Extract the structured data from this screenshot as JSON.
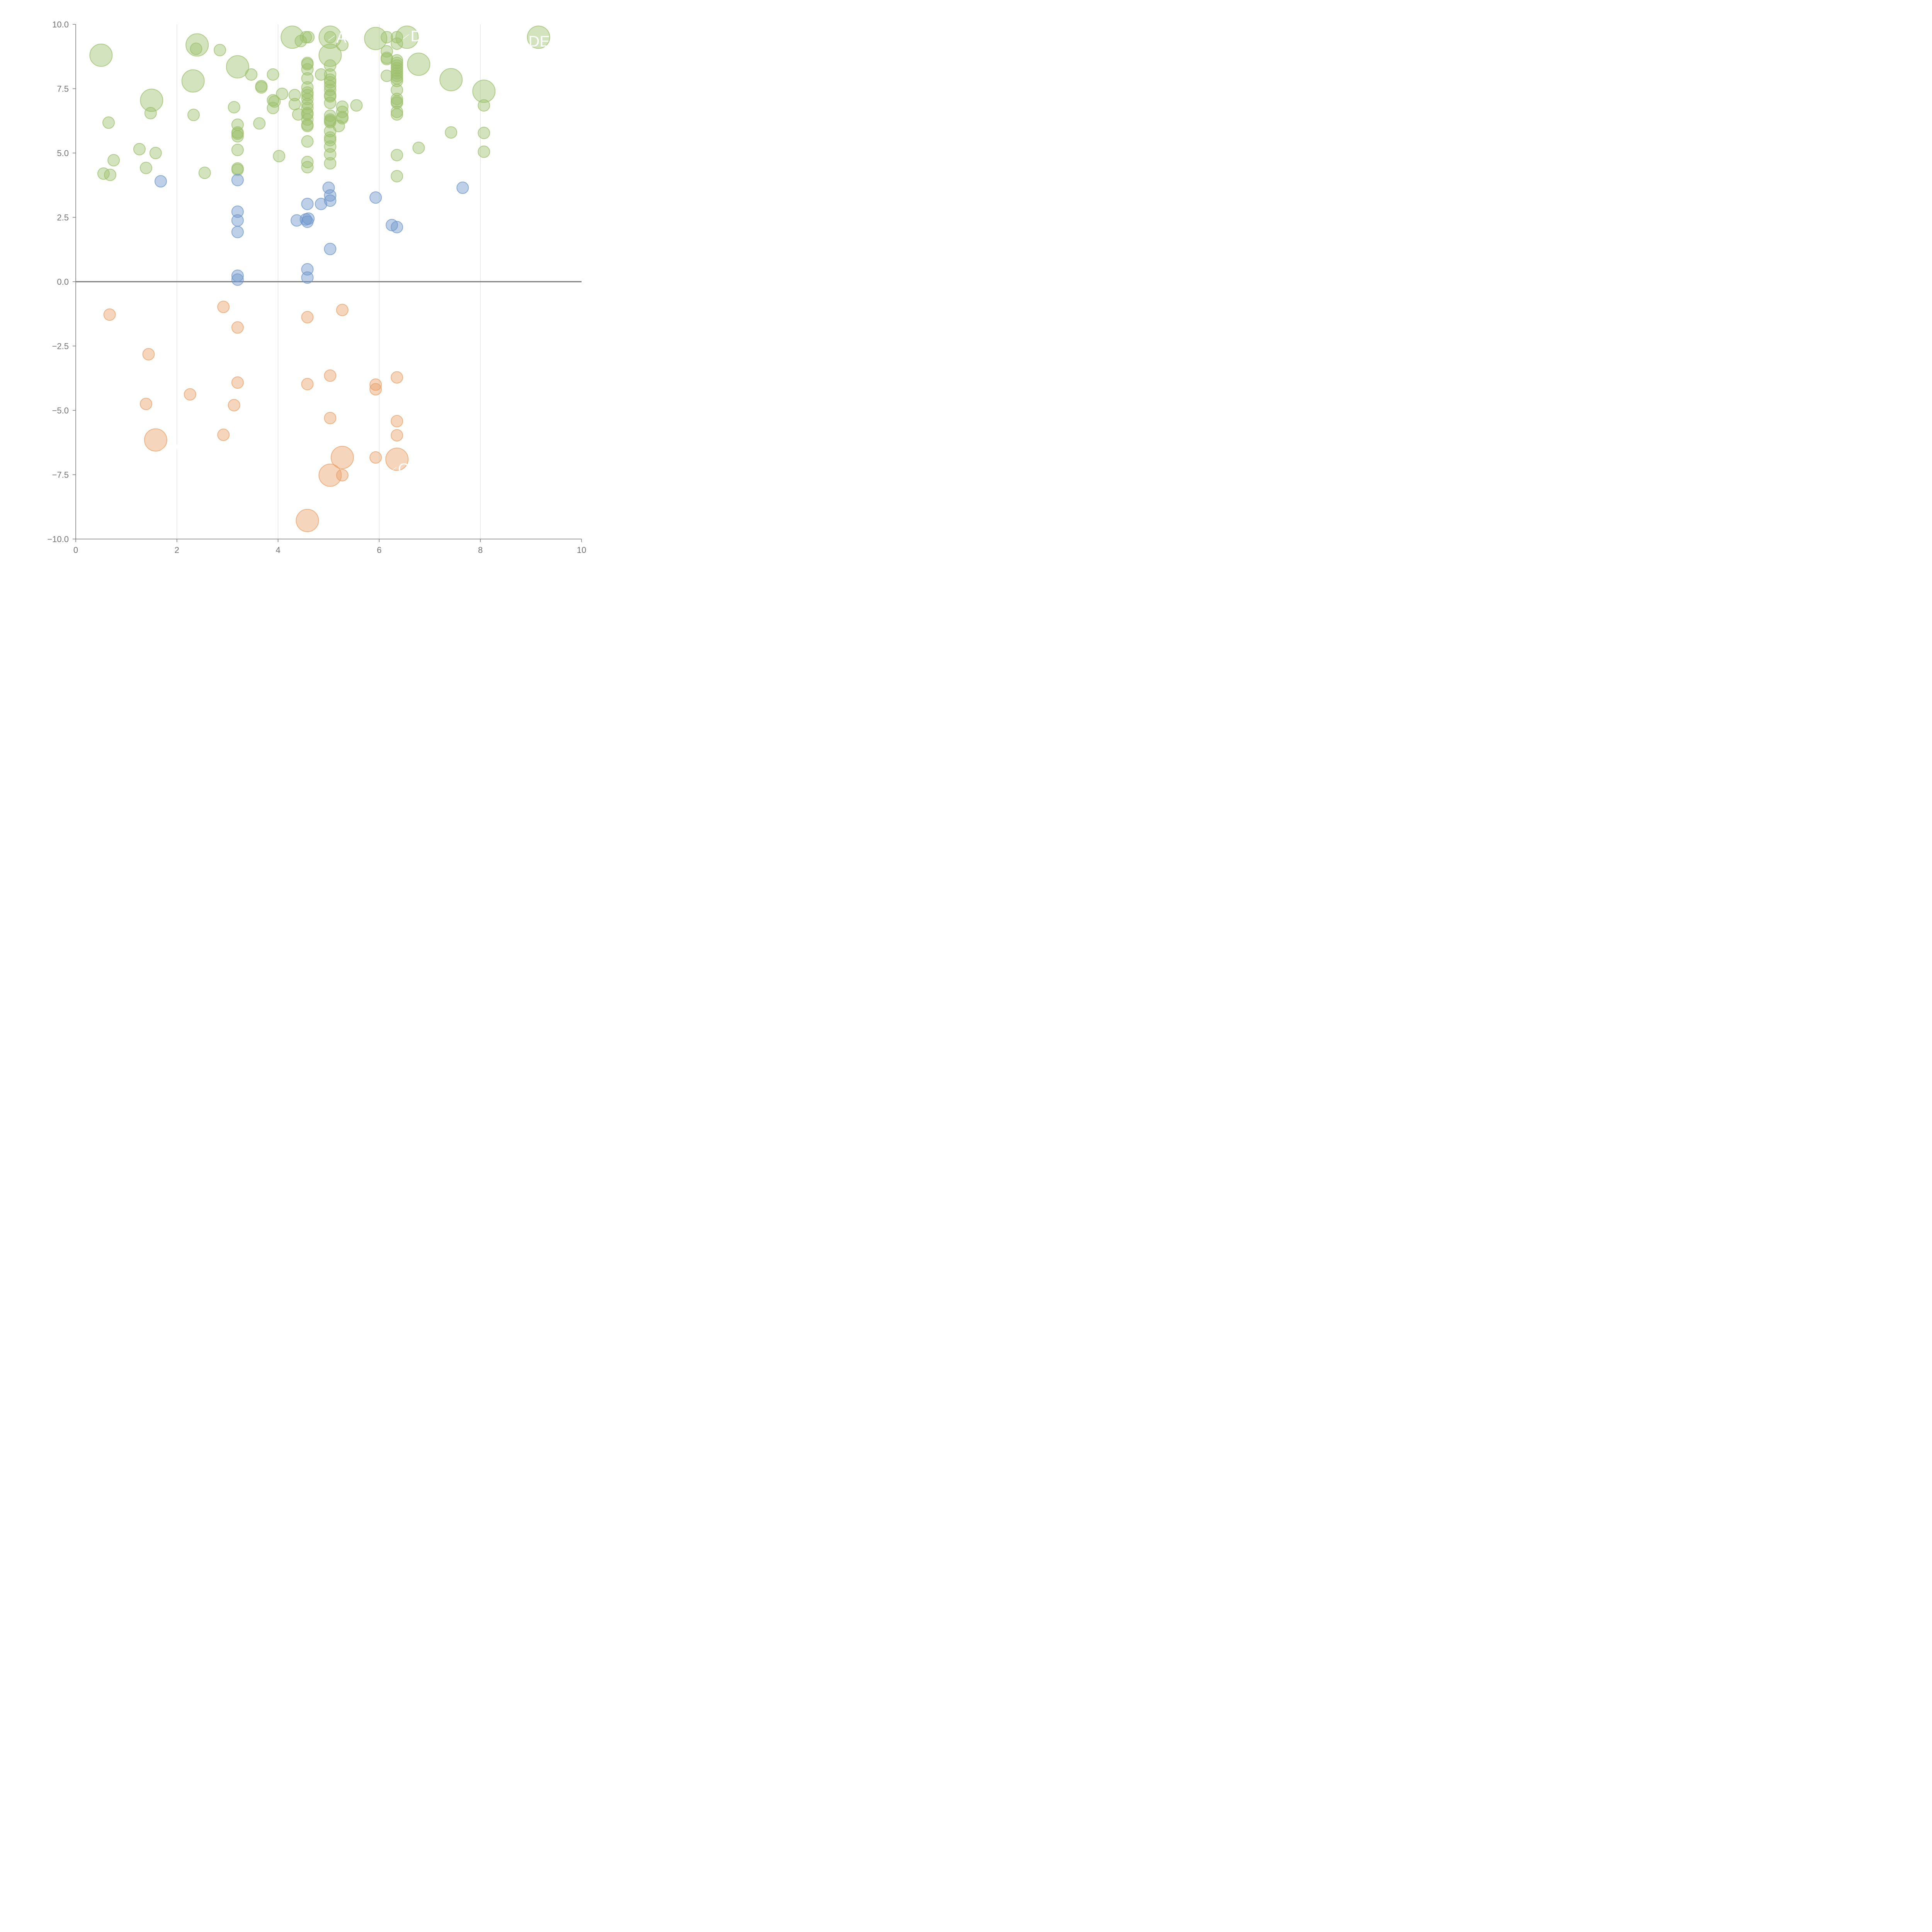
{
  "chart_data": {
    "type": "scatter",
    "title": "",
    "xlabel": "",
    "ylabel": "",
    "xlim": [
      0,
      10
    ],
    "ylim": [
      -10,
      10
    ],
    "x_ticks": [
      "0",
      "2",
      "4",
      "6",
      "8",
      "10"
    ],
    "y_ticks": [
      "−10.0",
      "−7.5",
      "−5.0",
      "−2.5",
      "0.0",
      "2.5",
      "5.0",
      "7.5",
      "10.0"
    ],
    "x_tick_values": [
      0,
      2,
      4,
      6,
      8,
      10
    ],
    "y_tick_values": [
      -10,
      -7.5,
      -5,
      -2.5,
      0,
      2.5,
      5,
      7.5,
      10
    ],
    "grid": "vertical",
    "zero_line": true,
    "colors": {
      "green": "#9dc06d",
      "blue": "#6f97cb",
      "orange": "#e9a26a"
    },
    "series": [
      {
        "color_key": "green",
        "points": [
          {
            "x": 0.5,
            "y": 8.8,
            "size": "large"
          },
          {
            "x": 2.4,
            "y": 9.2,
            "size": "large"
          },
          {
            "x": 4.28,
            "y": 9.5,
            "size": "large"
          },
          {
            "x": 5.03,
            "y": 9.5,
            "size": "large"
          },
          {
            "x": 5.03,
            "y": 8.8,
            "size": "large"
          },
          {
            "x": 5.93,
            "y": 9.45,
            "size": "large"
          },
          {
            "x": 6.55,
            "y": 9.5,
            "size": "large"
          },
          {
            "x": 9.15,
            "y": 9.5,
            "size": "large"
          },
          {
            "x": 3.2,
            "y": 8.35,
            "size": "large"
          },
          {
            "x": 2.32,
            "y": 7.8,
            "size": "large"
          },
          {
            "x": 6.78,
            "y": 8.45,
            "size": "large"
          },
          {
            "x": 7.42,
            "y": 7.85,
            "size": "large"
          },
          {
            "x": 8.07,
            "y": 7.4,
            "size": "large"
          },
          {
            "x": 1.5,
            "y": 7.05,
            "size": "large"
          },
          {
            "x": 2.38,
            "y": 9.05
          },
          {
            "x": 2.85,
            "y": 9.0
          },
          {
            "x": 4.45,
            "y": 9.35
          },
          {
            "x": 4.55,
            "y": 9.5
          },
          {
            "x": 4.6,
            "y": 9.5
          },
          {
            "x": 5.03,
            "y": 9.5
          },
          {
            "x": 5.27,
            "y": 9.2
          },
          {
            "x": 6.15,
            "y": 9.5
          },
          {
            "x": 6.35,
            "y": 9.5
          },
          {
            "x": 6.35,
            "y": 9.25
          },
          {
            "x": 6.15,
            "y": 8.95
          },
          {
            "x": 6.15,
            "y": 8.7
          },
          {
            "x": 6.15,
            "y": 8.65
          },
          {
            "x": 4.58,
            "y": 8.5
          },
          {
            "x": 4.58,
            "y": 8.45
          },
          {
            "x": 4.58,
            "y": 8.25
          },
          {
            "x": 5.03,
            "y": 8.4
          },
          {
            "x": 6.35,
            "y": 8.6
          },
          {
            "x": 6.35,
            "y": 8.5
          },
          {
            "x": 6.35,
            "y": 8.4
          },
          {
            "x": 6.35,
            "y": 8.3
          },
          {
            "x": 6.35,
            "y": 8.2
          },
          {
            "x": 6.35,
            "y": 8.1
          },
          {
            "x": 6.35,
            "y": 8.0
          },
          {
            "x": 6.35,
            "y": 7.9
          },
          {
            "x": 6.35,
            "y": 7.8
          },
          {
            "x": 6.15,
            "y": 8.0
          },
          {
            "x": 3.47,
            "y": 8.05
          },
          {
            "x": 3.9,
            "y": 8.05
          },
          {
            "x": 4.85,
            "y": 8.05
          },
          {
            "x": 5.03,
            "y": 8.05
          },
          {
            "x": 4.58,
            "y": 7.9
          },
          {
            "x": 5.03,
            "y": 7.85
          },
          {
            "x": 5.03,
            "y": 7.75
          },
          {
            "x": 5.03,
            "y": 7.6
          },
          {
            "x": 3.67,
            "y": 7.6
          },
          {
            "x": 3.67,
            "y": 7.55
          },
          {
            "x": 4.58,
            "y": 7.55
          },
          {
            "x": 4.58,
            "y": 7.35
          },
          {
            "x": 4.58,
            "y": 7.25
          },
          {
            "x": 4.58,
            "y": 7.1
          },
          {
            "x": 4.58,
            "y": 6.9
          },
          {
            "x": 4.58,
            "y": 6.75
          },
          {
            "x": 6.35,
            "y": 7.45
          },
          {
            "x": 5.03,
            "y": 7.45
          },
          {
            "x": 5.03,
            "y": 7.25
          },
          {
            "x": 5.03,
            "y": 7.2
          },
          {
            "x": 5.03,
            "y": 6.95
          },
          {
            "x": 4.08,
            "y": 7.3
          },
          {
            "x": 4.33,
            "y": 7.25
          },
          {
            "x": 3.9,
            "y": 7.05
          },
          {
            "x": 3.93,
            "y": 7.0
          },
          {
            "x": 4.33,
            "y": 6.9
          },
          {
            "x": 6.35,
            "y": 7.1
          },
          {
            "x": 6.35,
            "y": 7.0
          },
          {
            "x": 6.35,
            "y": 6.95
          },
          {
            "x": 3.9,
            "y": 6.75
          },
          {
            "x": 3.13,
            "y": 6.78
          },
          {
            "x": 5.27,
            "y": 6.8
          },
          {
            "x": 5.55,
            "y": 6.85
          },
          {
            "x": 8.07,
            "y": 6.85
          },
          {
            "x": 4.58,
            "y": 6.55
          },
          {
            "x": 4.58,
            "y": 6.5
          },
          {
            "x": 4.58,
            "y": 6.3
          },
          {
            "x": 4.58,
            "y": 6.1
          },
          {
            "x": 4.58,
            "y": 6.05
          },
          {
            "x": 4.4,
            "y": 6.5
          },
          {
            "x": 5.27,
            "y": 6.6
          },
          {
            "x": 5.27,
            "y": 6.4
          },
          {
            "x": 5.27,
            "y": 6.35
          },
          {
            "x": 5.03,
            "y": 6.45
          },
          {
            "x": 5.03,
            "y": 6.3
          },
          {
            "x": 5.03,
            "y": 6.25
          },
          {
            "x": 5.03,
            "y": 6.2
          },
          {
            "x": 5.2,
            "y": 6.05
          },
          {
            "x": 6.35,
            "y": 6.6
          },
          {
            "x": 6.35,
            "y": 6.5
          },
          {
            "x": 1.48,
            "y": 6.55
          },
          {
            "x": 2.33,
            "y": 6.48
          },
          {
            "x": 0.65,
            "y": 6.18
          },
          {
            "x": 3.63,
            "y": 6.15
          },
          {
            "x": 3.2,
            "y": 6.1
          },
          {
            "x": 3.2,
            "y": 5.8
          },
          {
            "x": 3.2,
            "y": 5.75
          },
          {
            "x": 3.2,
            "y": 5.65
          },
          {
            "x": 5.03,
            "y": 5.85
          },
          {
            "x": 5.03,
            "y": 5.6
          },
          {
            "x": 5.03,
            "y": 5.5
          },
          {
            "x": 5.03,
            "y": 5.25
          },
          {
            "x": 5.03,
            "y": 4.95
          },
          {
            "x": 5.03,
            "y": 4.6
          },
          {
            "x": 4.58,
            "y": 5.45
          },
          {
            "x": 4.58,
            "y": 4.65
          },
          {
            "x": 4.58,
            "y": 4.45
          },
          {
            "x": 7.42,
            "y": 5.8
          },
          {
            "x": 8.07,
            "y": 5.78
          },
          {
            "x": 8.07,
            "y": 5.05
          },
          {
            "x": 6.78,
            "y": 5.2
          },
          {
            "x": 1.26,
            "y": 5.15
          },
          {
            "x": 1.58,
            "y": 5.0
          },
          {
            "x": 3.2,
            "y": 5.12
          },
          {
            "x": 4.02,
            "y": 4.88
          },
          {
            "x": 6.35,
            "y": 4.92
          },
          {
            "x": 0.75,
            "y": 4.72
          },
          {
            "x": 1.39,
            "y": 4.42
          },
          {
            "x": 3.2,
            "y": 4.4
          },
          {
            "x": 3.2,
            "y": 4.35
          },
          {
            "x": 0.55,
            "y": 4.2
          },
          {
            "x": 0.68,
            "y": 4.15
          },
          {
            "x": 2.55,
            "y": 4.23
          },
          {
            "x": 6.35,
            "y": 4.1
          }
        ]
      },
      {
        "color_key": "blue",
        "points": [
          {
            "x": 1.68,
            "y": 3.9
          },
          {
            "x": 3.2,
            "y": 3.95
          },
          {
            "x": 5.0,
            "y": 3.65
          },
          {
            "x": 5.03,
            "y": 3.35
          },
          {
            "x": 5.03,
            "y": 3.15
          },
          {
            "x": 5.93,
            "y": 3.27
          },
          {
            "x": 7.65,
            "y": 3.65
          },
          {
            "x": 4.58,
            "y": 3.02
          },
          {
            "x": 4.85,
            "y": 3.02
          },
          {
            "x": 3.2,
            "y": 2.72
          },
          {
            "x": 3.2,
            "y": 2.38
          },
          {
            "x": 3.2,
            "y": 1.93
          },
          {
            "x": 4.37,
            "y": 2.38
          },
          {
            "x": 4.55,
            "y": 2.42
          },
          {
            "x": 4.6,
            "y": 2.45
          },
          {
            "x": 4.58,
            "y": 2.33
          },
          {
            "x": 6.25,
            "y": 2.2
          },
          {
            "x": 6.35,
            "y": 2.12
          },
          {
            "x": 5.03,
            "y": 1.27
          },
          {
            "x": 4.58,
            "y": 0.48
          },
          {
            "x": 4.58,
            "y": 0.16
          },
          {
            "x": 3.2,
            "y": 0.23
          },
          {
            "x": 3.2,
            "y": 0.08
          }
        ]
      },
      {
        "color_key": "orange",
        "points": [
          {
            "x": 2.92,
            "y": -0.98
          },
          {
            "x": 0.67,
            "y": -1.28
          },
          {
            "x": 5.27,
            "y": -1.1
          },
          {
            "x": 4.58,
            "y": -1.38
          },
          {
            "x": 3.2,
            "y": -1.78
          },
          {
            "x": 1.44,
            "y": -2.82
          },
          {
            "x": 5.03,
            "y": -3.65
          },
          {
            "x": 6.35,
            "y": -3.72
          },
          {
            "x": 3.2,
            "y": -3.92
          },
          {
            "x": 4.58,
            "y": -3.98
          },
          {
            "x": 5.93,
            "y": -4.0
          },
          {
            "x": 5.93,
            "y": -4.18
          },
          {
            "x": 2.26,
            "y": -4.38
          },
          {
            "x": 1.39,
            "y": -4.75
          },
          {
            "x": 3.13,
            "y": -4.8
          },
          {
            "x": 5.03,
            "y": -5.3
          },
          {
            "x": 6.35,
            "y": -5.42
          },
          {
            "x": 2.92,
            "y": -5.95
          },
          {
            "x": 6.35,
            "y": -5.97
          },
          {
            "x": 5.93,
            "y": -6.83
          },
          {
            "x": 5.27,
            "y": -7.52
          },
          {
            "x": 1.58,
            "y": -6.15,
            "size": "large"
          },
          {
            "x": 5.27,
            "y": -6.83,
            "size": "large"
          },
          {
            "x": 6.35,
            "y": -6.9,
            "size": "large"
          },
          {
            "x": 5.03,
            "y": -7.52,
            "size": "large"
          },
          {
            "x": 4.58,
            "y": -9.28,
            "size": "large"
          }
        ]
      }
    ],
    "labels": [
      {
        "text": "A",
        "x": 5.15,
        "y": 9.5
      },
      {
        "text": "D",
        "x": 6.62,
        "y": 9.55
      },
      {
        "text": "DE",
        "x": 8.95,
        "y": 9.35
      },
      {
        "text": "W",
        "x": 1.83,
        "y": -6.45
      },
      {
        "text": "G",
        "x": 6.37,
        "y": -7.27
      }
    ]
  }
}
